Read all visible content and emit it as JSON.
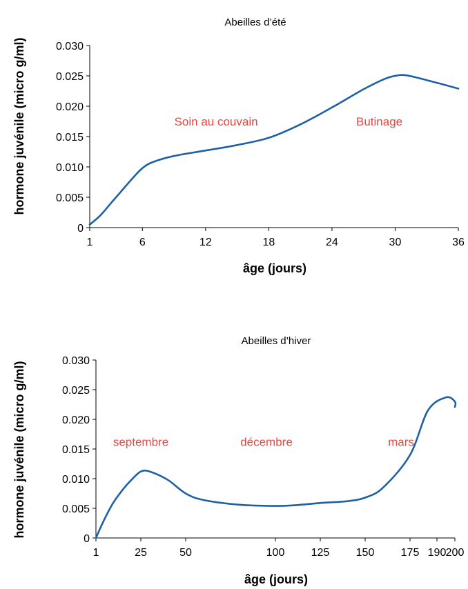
{
  "chart_data": [
    {
      "type": "line",
      "title": "Abeilles d’été",
      "xlabel": "âge (jours)",
      "ylabel": "hormone juvénile (micro g/ml)",
      "x_tick_labels": [
        "1",
        "6",
        "12",
        "18",
        "24",
        "30",
        "36"
      ],
      "y_tick_labels": [
        "0",
        "0.005",
        "0.010",
        "0.015",
        "0.020",
        "0.025",
        "0.030"
      ],
      "ylim": [
        0,
        0.03
      ],
      "series": [
        {
          "color": "#1f5fa6",
          "points": [
            [
              1,
              0.0005
            ],
            [
              2,
              0.002
            ],
            [
              3,
              0.004
            ],
            [
              4,
              0.006
            ],
            [
              5,
              0.008
            ],
            [
              6,
              0.0098
            ],
            [
              7,
              0.0108
            ],
            [
              9,
              0.0118
            ],
            [
              12,
              0.0127
            ],
            [
              15,
              0.0136
            ],
            [
              18,
              0.0148
            ],
            [
              21,
              0.017
            ],
            [
              24,
              0.0198
            ],
            [
              27,
              0.0228
            ],
            [
              29,
              0.0245
            ],
            [
              30,
              0.025
            ],
            [
              31,
              0.0251
            ],
            [
              33,
              0.0243
            ],
            [
              36,
              0.0229
            ]
          ]
        }
      ],
      "annotations": [
        {
          "text": "Soin au couvain",
          "x": 13,
          "y": 0.0168
        },
        {
          "text": "Butinage",
          "x": 28.5,
          "y": 0.0168
        }
      ]
    },
    {
      "type": "line",
      "title": "Abeilles d’hiver",
      "xlabel": "âge (jours)",
      "ylabel": "hormone juvénile (micro g/ml)",
      "x_tick_labels": [
        "1",
        "25",
        "50",
        "100",
        "125",
        "150",
        "175",
        "190",
        "200"
      ],
      "y_tick_labels": [
        "0",
        "0.005",
        "0.010",
        "0.015",
        "0.020",
        "0.025",
        "0.030"
      ],
      "ylim": [
        0,
        0.03
      ],
      "series": [
        {
          "color": "#1f5fa6",
          "points": [
            [
              1,
              0.0
            ],
            [
              5,
              0.0028
            ],
            [
              10,
              0.0058
            ],
            [
              15,
              0.008
            ],
            [
              20,
              0.0098
            ],
            [
              25,
              0.0112
            ],
            [
              30,
              0.0112
            ],
            [
              40,
              0.0098
            ],
            [
              50,
              0.0075
            ],
            [
              60,
              0.0064
            ],
            [
              80,
              0.0056
            ],
            [
              100,
              0.0054
            ],
            [
              110,
              0.0055
            ],
            [
              125,
              0.0059
            ],
            [
              140,
              0.0062
            ],
            [
              150,
              0.0068
            ],
            [
              160,
              0.0085
            ],
            [
              175,
              0.014
            ],
            [
              185,
              0.0215
            ],
            [
              195,
              0.0237
            ],
            [
              205,
              0.023
            ],
            [
              215,
              0.0221
            ]
          ]
        }
      ],
      "annotations": [
        {
          "text": "septembre",
          "x": 25,
          "y": 0.0155
        },
        {
          "text": "décembre",
          "x": 95,
          "y": 0.0155
        },
        {
          "text": "mars",
          "x": 170,
          "y": 0.0155
        }
      ]
    }
  ]
}
